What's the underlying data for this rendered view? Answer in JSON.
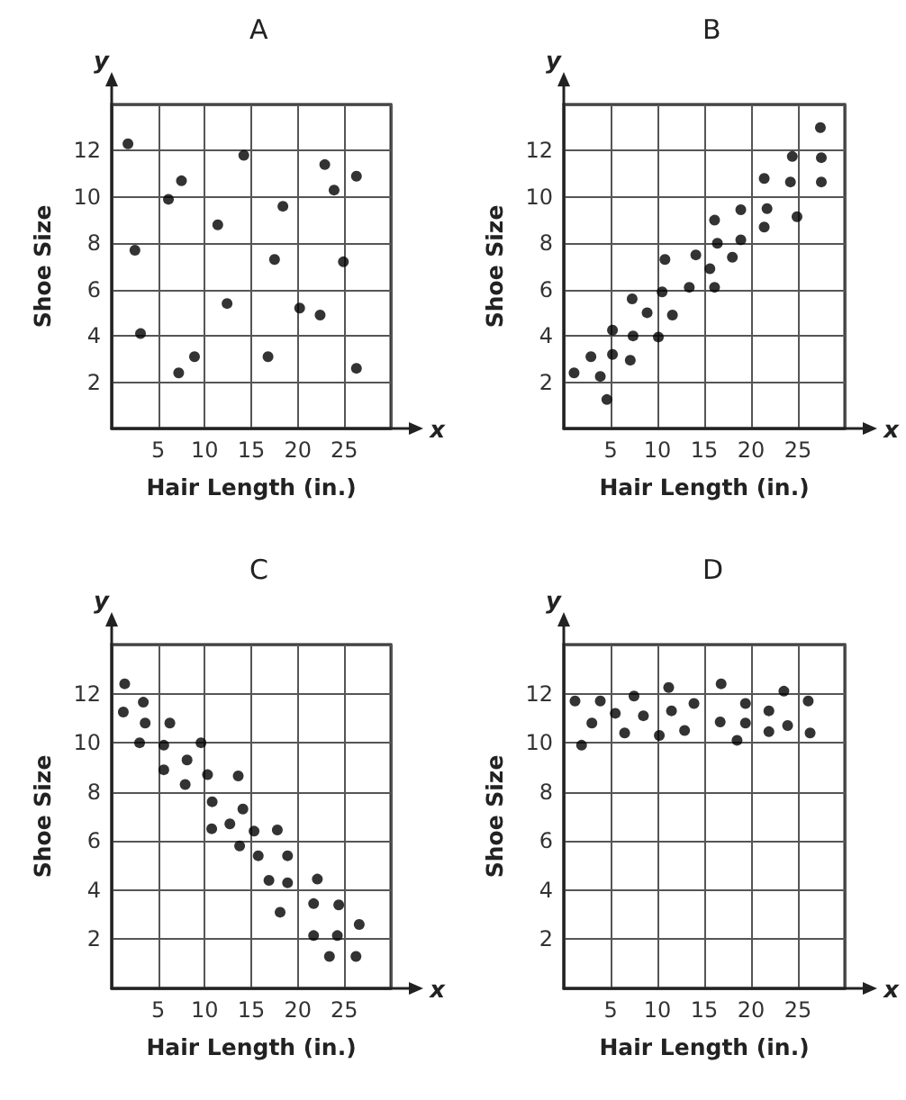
{
  "chart_data": [
    {
      "type": "scatter",
      "title": "A",
      "xlabel": "Hair Length (in.)",
      "ylabel": "Shoe Size",
      "annotations": [
        "y",
        "x"
      ],
      "xlim": [
        0,
        30
      ],
      "ylim": [
        0,
        14
      ],
      "xticks": [
        5,
        10,
        15,
        20,
        25
      ],
      "yticks": [
        2,
        4,
        6,
        8,
        10,
        12
      ],
      "grid": true,
      "marker": "circle",
      "series": [
        {
          "color": "#000000",
          "x": [
            1.75,
            2.5,
            3.1,
            6.1,
            7.5,
            7.2,
            8.9,
            11.4,
            12.4,
            14.2,
            16.8,
            17.5,
            18.4,
            20.2,
            22.4,
            22.9,
            23.9,
            26.3,
            24.9,
            26.3
          ],
          "values": [
            12.3,
            7.7,
            4.1,
            9.9,
            10.7,
            2.4,
            3.1,
            8.8,
            5.4,
            11.8,
            3.1,
            7.3,
            9.6,
            5.2,
            4.9,
            11.4,
            10.3,
            10.9,
            7.2,
            2.6
          ]
        }
      ]
    },
    {
      "type": "scatter",
      "title": "B",
      "xlabel": "Hair Length (in.)",
      "ylabel": "Shoe Size",
      "annotations": [
        "y",
        "x"
      ],
      "xlim": [
        0,
        30
      ],
      "ylim": [
        0,
        14
      ],
      "xticks": [
        5,
        10,
        15,
        20,
        25
      ],
      "yticks": [
        2,
        4,
        6,
        8,
        10,
        12
      ],
      "grid": true,
      "marker": "circle",
      "series": [
        {
          "color": "#000000",
          "x": [
            1.1,
            2.9,
            3.9,
            4.6,
            5.2,
            5.2,
            7.1,
            7.4,
            7.3,
            8.9,
            10.1,
            10.5,
            10.8,
            11.6,
            13.4,
            14.1,
            15.6,
            16.1,
            16.4,
            16.1,
            18.0,
            18.9,
            18.9,
            21.4,
            21.4,
            21.7,
            24.2,
            24.4,
            24.9,
            27.4,
            27.5,
            27.5
          ],
          "values": [
            2.4,
            3.1,
            2.25,
            1.25,
            3.2,
            4.25,
            2.95,
            4.0,
            5.6,
            5.0,
            3.95,
            5.9,
            7.3,
            4.9,
            6.1,
            7.5,
            6.9,
            9.0,
            8.0,
            6.1,
            7.4,
            9.45,
            8.15,
            10.8,
            8.7,
            9.5,
            10.65,
            11.75,
            9.15,
            13.0,
            11.7,
            10.65
          ]
        }
      ]
    },
    {
      "type": "scatter",
      "title": "C",
      "xlabel": "Hair Length (in.)",
      "ylabel": "Shoe Size",
      "annotations": [
        "y",
        "x"
      ],
      "xlim": [
        0,
        30
      ],
      "ylim": [
        0,
        14
      ],
      "xticks": [
        5,
        10,
        15,
        20,
        25
      ],
      "yticks": [
        2,
        4,
        6,
        8,
        10,
        12
      ],
      "grid": true,
      "marker": "circle",
      "series": [
        {
          "color": "#000000",
          "x": [
            1.4,
            1.25,
            3.4,
            3.6,
            3.0,
            6.25,
            5.6,
            5.6,
            8.1,
            7.9,
            9.6,
            10.3,
            10.8,
            10.75,
            12.7,
            13.6,
            14.1,
            13.75,
            15.3,
            15.75,
            16.9,
            17.8,
            18.1,
            18.9,
            18.9,
            22.1,
            21.7,
            21.7,
            24.4,
            24.25,
            23.4,
            26.6,
            26.25
          ],
          "values": [
            12.4,
            11.25,
            11.65,
            10.8,
            10.0,
            10.8,
            9.9,
            8.9,
            9.3,
            8.3,
            10.0,
            8.7,
            7.6,
            6.5,
            6.7,
            8.65,
            7.3,
            5.8,
            6.4,
            5.4,
            4.4,
            6.45,
            3.1,
            5.4,
            4.3,
            4.45,
            3.45,
            2.15,
            3.4,
            2.15,
            1.3,
            2.6,
            1.3
          ]
        }
      ]
    },
    {
      "type": "scatter",
      "title": "D",
      "xlabel": "Hair Length (in.)",
      "ylabel": "Shoe Size",
      "annotations": [
        "y",
        "x"
      ],
      "xlim": [
        0,
        30
      ],
      "ylim": [
        0,
        14
      ],
      "xticks": [
        5,
        10,
        15,
        20,
        25
      ],
      "yticks": [
        2,
        4,
        6,
        8,
        10,
        12
      ],
      "grid": true,
      "marker": "circle",
      "series": [
        {
          "color": "#000000",
          "x": [
            1.2,
            1.9,
            3.0,
            3.9,
            5.5,
            6.5,
            7.5,
            8.5,
            10.2,
            11.2,
            11.5,
            12.9,
            13.9,
            16.8,
            16.7,
            18.5,
            19.4,
            19.4,
            21.9,
            21.9,
            23.5,
            23.9,
            26.1,
            26.3
          ],
          "values": [
            11.7,
            9.9,
            10.8,
            11.7,
            11.2,
            10.4,
            11.9,
            11.1,
            10.3,
            12.25,
            11.3,
            10.5,
            11.6,
            12.4,
            10.85,
            10.1,
            11.6,
            10.8,
            11.3,
            10.45,
            12.1,
            10.7,
            11.7,
            10.4
          ]
        }
      ]
    }
  ]
}
